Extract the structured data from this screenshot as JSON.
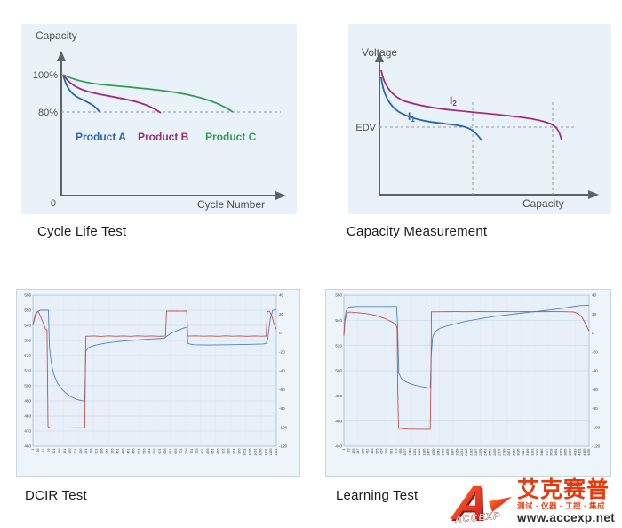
{
  "panels": {
    "cycle_life": {
      "title": "Cycle Life Test",
      "ylabel": "Capacity",
      "xlabel": "Cycle Number",
      "ytick_100": "100%",
      "ytick_80": "80%",
      "origin_label": "0",
      "series": [
        {
          "label": "Product A",
          "color": "#2b67b2"
        },
        {
          "label": "Product B",
          "color": "#a22a80"
        },
        {
          "label": "Product C",
          "color": "#2f9e53"
        }
      ]
    },
    "capacity_measurement": {
      "title": "Capacity Measurement",
      "ylabel": "Voltage",
      "xlabel": "Capacity",
      "edv_label": "EDV",
      "series": [
        {
          "base": "I",
          "sub": "1",
          "color": "#2b67b2"
        },
        {
          "base": "I",
          "sub": "2",
          "color": "#a22a80"
        }
      ]
    },
    "dcir": {
      "title": "DCIR Test"
    },
    "learning": {
      "title": "Learning Test"
    }
  },
  "logo": {
    "latin": "ACCEXP",
    "cn_name": "艾克赛普",
    "tagline": "测试 · 仪器 · 工控 · 集成",
    "url": "www.accexp.net",
    "red": "#e8380d"
  },
  "chart_data": [
    {
      "name": "cycle_life_test",
      "type": "line",
      "conceptual": true,
      "title": "Cycle Life Test",
      "xlabel": "Cycle Number",
      "ylabel": "Capacity",
      "yticks": [
        "100%",
        "80%",
        "0"
      ],
      "annotations": [
        "dashed reference line at 80% capacity"
      ],
      "series": [
        {
          "name": "Product A",
          "color": "#2b67b2",
          "description": "capacity falls from 100% to 80% after the fewest cycles"
        },
        {
          "name": "Product B",
          "color": "#a22a80",
          "description": "capacity falls from 100% to 80% after a medium number of cycles"
        },
        {
          "name": "Product C",
          "color": "#2f9e53",
          "description": "capacity falls from 100% to 80% after the most cycles"
        }
      ]
    },
    {
      "name": "capacity_measurement",
      "type": "line",
      "conceptual": true,
      "title": "Capacity Measurement",
      "xlabel": "Capacity",
      "ylabel": "Voltage",
      "annotations": [
        "horizontal dashed EDV (end of discharge voltage) line",
        "vertical dashed lines where each discharge curve crosses EDV"
      ],
      "series": [
        {
          "name": "I1",
          "color": "#2b67b2",
          "description": "higher-rate discharge curve, reaches EDV at lower capacity"
        },
        {
          "name": "I2",
          "color": "#a22a80",
          "description": "lower-rate discharge curve, reaches EDV at higher capacity"
        }
      ]
    },
    {
      "name": "dcir",
      "dual_axis": true,
      "type": "line",
      "title": "DCIR Test",
      "left_axis": {
        "min": 460,
        "max": 560,
        "step": 10
      },
      "right_axis": {
        "min": -120,
        "max": 40,
        "step": 20
      },
      "x_tick_labels": [
        1,
        26,
        51,
        76,
        101,
        126,
        151,
        176,
        201,
        226,
        251,
        276,
        301,
        326,
        351,
        376,
        401,
        426,
        451,
        476,
        501,
        526,
        551,
        576,
        601,
        626,
        651,
        676,
        701,
        726,
        751,
        776,
        801,
        826,
        851,
        876,
        901,
        926,
        951,
        976,
        1001,
        1026,
        1051,
        1076,
        1101,
        1126,
        1151
      ],
      "series": [
        {
          "name": "voltage",
          "axis": "left",
          "color": "#4f81bd",
          "points": [
            [
              0,
              540
            ],
            [
              0.008,
              545
            ],
            [
              0.018,
              549
            ],
            [
              0.03,
              550
            ],
            [
              0.064,
              550
            ],
            [
              0.068,
              526
            ],
            [
              0.075,
              516
            ],
            [
              0.085,
              508
            ],
            [
              0.1,
              502
            ],
            [
              0.12,
              497.5
            ],
            [
              0.14,
              494.5
            ],
            [
              0.16,
              492.5
            ],
            [
              0.18,
              491
            ],
            [
              0.2,
              490.2
            ],
            [
              0.213,
              490
            ],
            [
              0.217,
              523
            ],
            [
              0.23,
              525.5
            ],
            [
              0.26,
              527
            ],
            [
              0.3,
              528.3
            ],
            [
              0.35,
              529.3
            ],
            [
              0.4,
              530
            ],
            [
              0.45,
              530.6
            ],
            [
              0.5,
              531.1
            ],
            [
              0.54,
              531.5
            ],
            [
              0.552,
              533
            ],
            [
              0.57,
              535
            ],
            [
              0.6,
              537
            ],
            [
              0.62,
              538.2
            ],
            [
              0.632,
              538.8
            ],
            [
              0.637,
              528
            ],
            [
              0.66,
              527.2
            ],
            [
              0.72,
              527
            ],
            [
              0.8,
              527.2
            ],
            [
              0.88,
              527.4
            ],
            [
              0.945,
              527.7
            ],
            [
              0.958,
              528
            ],
            [
              0.965,
              531
            ],
            [
              0.975,
              544
            ],
            [
              0.985,
              549.8
            ],
            [
              1,
              550.5
            ]
          ]
        },
        {
          "name": "current",
          "axis": "right",
          "color": "#c0504d",
          "points": [
            [
              0,
              8
            ],
            [
              0.01,
              20
            ],
            [
              0.022,
              23
            ],
            [
              0.04,
              12
            ],
            [
              0.052,
              4
            ],
            [
              0.058,
              3
            ],
            [
              0.062,
              -99
            ],
            [
              0.07,
              -100.5
            ],
            [
              0.12,
              -100.6
            ],
            [
              0.18,
              -100.5
            ],
            [
              0.213,
              -100.5
            ],
            [
              0.217,
              -3.6
            ],
            [
              0.25,
              -3.2
            ],
            [
              0.28,
              -3.7
            ],
            [
              0.31,
              -3.1
            ],
            [
              0.34,
              -3.6
            ],
            [
              0.37,
              -3.2
            ],
            [
              0.4,
              -3.6
            ],
            [
              0.43,
              -3.1
            ],
            [
              0.46,
              -3.5
            ],
            [
              0.49,
              -3.2
            ],
            [
              0.52,
              -3.6
            ],
            [
              0.545,
              -3.3
            ],
            [
              0.549,
              23
            ],
            [
              0.58,
              23.1
            ],
            [
              0.61,
              23
            ],
            [
              0.632,
              23.1
            ],
            [
              0.636,
              -3.4
            ],
            [
              0.67,
              -3.1
            ],
            [
              0.7,
              -3.5
            ],
            [
              0.73,
              -3.2
            ],
            [
              0.76,
              -3.6
            ],
            [
              0.79,
              -3.1
            ],
            [
              0.82,
              -3.5
            ],
            [
              0.85,
              -3.2
            ],
            [
              0.88,
              -3.6
            ],
            [
              0.91,
              -3.2
            ],
            [
              0.94,
              -3.5
            ],
            [
              0.958,
              -3.3
            ],
            [
              0.963,
              22.5
            ],
            [
              0.972,
              23
            ],
            [
              0.98,
              19
            ],
            [
              0.99,
              10
            ],
            [
              1,
              4
            ]
          ]
        }
      ]
    },
    {
      "name": "learning",
      "dual_axis": true,
      "type": "line",
      "title": "Learning Test",
      "left_axis": {
        "min": 440,
        "max": 560,
        "step": 20
      },
      "right_axis": {
        "min": -120,
        "max": 40,
        "step": 20
      },
      "x_tick_labels": [
        1,
        83,
        165,
        247,
        329,
        411,
        493,
        575,
        657,
        739,
        821,
        903,
        985,
        1067,
        1149,
        1231,
        1313,
        1395,
        1477,
        1559,
        1641,
        1723,
        1805,
        1887,
        1969,
        2051,
        2133,
        2215,
        2297,
        2379,
        2461,
        2543,
        2625,
        2707,
        2789,
        2871,
        2953,
        3035,
        3117,
        3199,
        3281,
        3363,
        3445,
        3527,
        3609,
        3691,
        3773,
        3855,
        3937,
        4019,
        4101,
        4183,
        4265
      ],
      "series": [
        {
          "name": "voltage",
          "axis": "left",
          "color": "#4f81bd",
          "points": [
            [
              0,
              528
            ],
            [
              0.004,
              542
            ],
            [
              0.01,
              548
            ],
            [
              0.02,
              550.5
            ],
            [
              0.05,
              551
            ],
            [
              0.12,
              551
            ],
            [
              0.2,
              551
            ],
            [
              0.215,
              551
            ],
            [
              0.219,
              536
            ],
            [
              0.224,
              498
            ],
            [
              0.235,
              493.5
            ],
            [
              0.255,
              491
            ],
            [
              0.28,
              489
            ],
            [
              0.31,
              487.5
            ],
            [
              0.335,
              486.7
            ],
            [
              0.352,
              486.2
            ],
            [
              0.356,
              512
            ],
            [
              0.362,
              527
            ],
            [
              0.372,
              531
            ],
            [
              0.39,
              533.5
            ],
            [
              0.42,
              535.5
            ],
            [
              0.46,
              537.5
            ],
            [
              0.5,
              539.3
            ],
            [
              0.55,
              541
            ],
            [
              0.6,
              542.6
            ],
            [
              0.65,
              544
            ],
            [
              0.7,
              545.2
            ],
            [
              0.75,
              546.3
            ],
            [
              0.8,
              547.3
            ],
            [
              0.85,
              548.4
            ],
            [
              0.9,
              549.8
            ],
            [
              0.93,
              550.8
            ],
            [
              0.96,
              551.6
            ],
            [
              1,
              552
            ]
          ]
        },
        {
          "name": "current",
          "axis": "right",
          "color": "#c0504d",
          "points": [
            [
              0,
              -3
            ],
            [
              0.004,
              12
            ],
            [
              0.012,
              21
            ],
            [
              0.025,
              22
            ],
            [
              0.05,
              21.5
            ],
            [
              0.09,
              20.5
            ],
            [
              0.13,
              18.5
            ],
            [
              0.17,
              15
            ],
            [
              0.2,
              11
            ],
            [
              0.213,
              8
            ],
            [
              0.217,
              5
            ],
            [
              0.2195,
              -60
            ],
            [
              0.223,
              -101
            ],
            [
              0.26,
              -101.8
            ],
            [
              0.3,
              -102
            ],
            [
              0.34,
              -102
            ],
            [
              0.352,
              -102
            ],
            [
              0.3555,
              -40
            ],
            [
              0.357,
              22.3
            ],
            [
              0.4,
              22.4
            ],
            [
              0.45,
              22.5
            ],
            [
              0.5,
              22.4
            ],
            [
              0.55,
              22.5
            ],
            [
              0.6,
              22.4
            ],
            [
              0.65,
              22.5
            ],
            [
              0.7,
              22.4
            ],
            [
              0.75,
              22.5
            ],
            [
              0.8,
              22.4
            ],
            [
              0.85,
              22.5
            ],
            [
              0.9,
              22.4
            ],
            [
              0.935,
              22.2
            ],
            [
              0.955,
              20.5
            ],
            [
              0.97,
              17
            ],
            [
              0.985,
              10
            ],
            [
              1,
              2
            ]
          ]
        }
      ]
    }
  ]
}
